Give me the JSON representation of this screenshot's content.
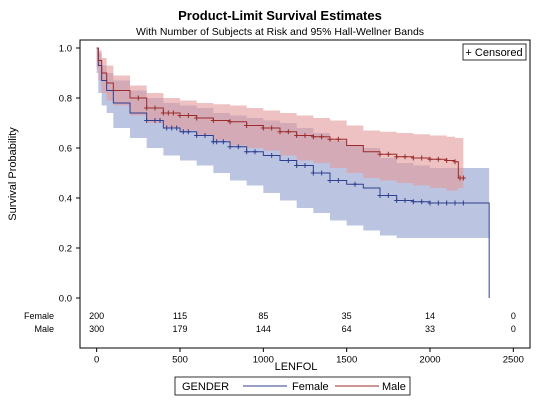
{
  "chart_data": {
    "type": "line",
    "title": "Product-Limit Survival Estimates",
    "subtitle": "With Number of Subjects at Risk and 95% Hall-Wellner Bands",
    "xlabel": "LENFOL",
    "ylabel": "Survival Probability",
    "xlim": [
      0,
      2500
    ],
    "ylim": [
      0,
      1.0
    ],
    "x_ticks": [
      "0",
      "500",
      "1000",
      "1500",
      "2000",
      "2500"
    ],
    "y_ticks": [
      "0.0",
      "0.2",
      "0.4",
      "0.6",
      "0.8",
      "1.0"
    ],
    "censored_legend": "+ Censored",
    "legend": {
      "title": "GENDER",
      "placement": "bottom"
    },
    "series": [
      {
        "name": "Female",
        "color": "#2f3f8f",
        "band_color": "#8d9ccd",
        "x": [
          0,
          10,
          30,
          60,
          100,
          200,
          300,
          400,
          500,
          600,
          700,
          800,
          900,
          1000,
          1100,
          1200,
          1300,
          1400,
          1500,
          1600,
          1700,
          1800,
          1900,
          2000,
          2100,
          2200,
          2300,
          2350,
          2355
        ],
        "y": [
          1.0,
          0.93,
          0.87,
          0.83,
          0.78,
          0.74,
          0.71,
          0.68,
          0.665,
          0.65,
          0.625,
          0.605,
          0.585,
          0.57,
          0.55,
          0.53,
          0.5,
          0.47,
          0.455,
          0.44,
          0.41,
          0.39,
          0.385,
          0.38,
          0.38,
          0.38,
          0.38,
          0.38,
          0.0
        ],
        "band_lower": [
          0.9,
          0.82,
          0.77,
          0.74,
          0.68,
          0.64,
          0.6,
          0.57,
          0.55,
          0.53,
          0.5,
          0.47,
          0.45,
          0.42,
          0.39,
          0.36,
          0.34,
          0.31,
          0.29,
          0.27,
          0.25,
          0.24,
          0.24,
          0.24,
          0.24,
          0.24,
          0.24,
          0.24,
          0.24
        ],
        "band_upper": [
          1.0,
          0.98,
          0.93,
          0.9,
          0.87,
          0.83,
          0.8,
          0.78,
          0.77,
          0.76,
          0.74,
          0.73,
          0.72,
          0.71,
          0.7,
          0.68,
          0.66,
          0.63,
          0.61,
          0.6,
          0.56,
          0.54,
          0.53,
          0.52,
          0.52,
          0.52,
          0.52,
          0.52,
          0.52
        ],
        "censored_x": [
          300,
          350,
          380,
          420,
          450,
          480,
          520,
          550,
          600,
          650,
          700,
          720,
          760,
          800,
          850,
          900,
          950,
          1050,
          1150,
          1200,
          1250,
          1300,
          1350,
          1400,
          1450,
          1550,
          1700,
          1750,
          1800,
          1850,
          1900,
          1950,
          2000,
          2050,
          2100,
          2150,
          2200
        ]
      },
      {
        "name": "Male",
        "color": "#9b2a2a",
        "band_color": "#e39a9a",
        "x": [
          0,
          10,
          30,
          60,
          100,
          200,
          300,
          400,
          500,
          600,
          700,
          800,
          900,
          1000,
          1100,
          1200,
          1300,
          1400,
          1500,
          1600,
          1700,
          1800,
          1900,
          2000,
          2100,
          2150,
          2170,
          2200
        ],
        "y": [
          1.0,
          0.95,
          0.9,
          0.86,
          0.83,
          0.8,
          0.76,
          0.74,
          0.73,
          0.72,
          0.71,
          0.705,
          0.69,
          0.68,
          0.665,
          0.65,
          0.645,
          0.635,
          0.61,
          0.585,
          0.575,
          0.565,
          0.56,
          0.555,
          0.55,
          0.545,
          0.48,
          0.48
        ],
        "band_lower": [
          0.92,
          0.87,
          0.82,
          0.79,
          0.77,
          0.73,
          0.7,
          0.68,
          0.67,
          0.65,
          0.63,
          0.61,
          0.6,
          0.59,
          0.57,
          0.55,
          0.54,
          0.52,
          0.5,
          0.48,
          0.47,
          0.46,
          0.45,
          0.44,
          0.43,
          0.43,
          0.44,
          0.44
        ],
        "band_upper": [
          1.0,
          0.99,
          0.96,
          0.93,
          0.89,
          0.85,
          0.82,
          0.8,
          0.79,
          0.78,
          0.775,
          0.77,
          0.76,
          0.75,
          0.74,
          0.73,
          0.72,
          0.71,
          0.69,
          0.67,
          0.665,
          0.66,
          0.655,
          0.65,
          0.645,
          0.64,
          0.64,
          0.64
        ],
        "censored_x": [
          250,
          300,
          350,
          400,
          430,
          460,
          500,
          550,
          600,
          700,
          800,
          900,
          1000,
          1050,
          1100,
          1150,
          1200,
          1250,
          1300,
          1350,
          1400,
          1450,
          1700,
          1750,
          1800,
          1850,
          1900,
          1950,
          2000,
          2050,
          2100,
          2150,
          2180,
          2200
        ]
      }
    ],
    "at_risk": {
      "times": [
        0,
        500,
        1000,
        1500,
        2000,
        2500
      ],
      "rows": [
        {
          "label": "Female",
          "counts": [
            "200",
            "115",
            "85",
            "35",
            "14",
            "0"
          ]
        },
        {
          "label": "Male",
          "counts": [
            "300",
            "179",
            "144",
            "64",
            "33",
            "0"
          ]
        }
      ]
    }
  }
}
